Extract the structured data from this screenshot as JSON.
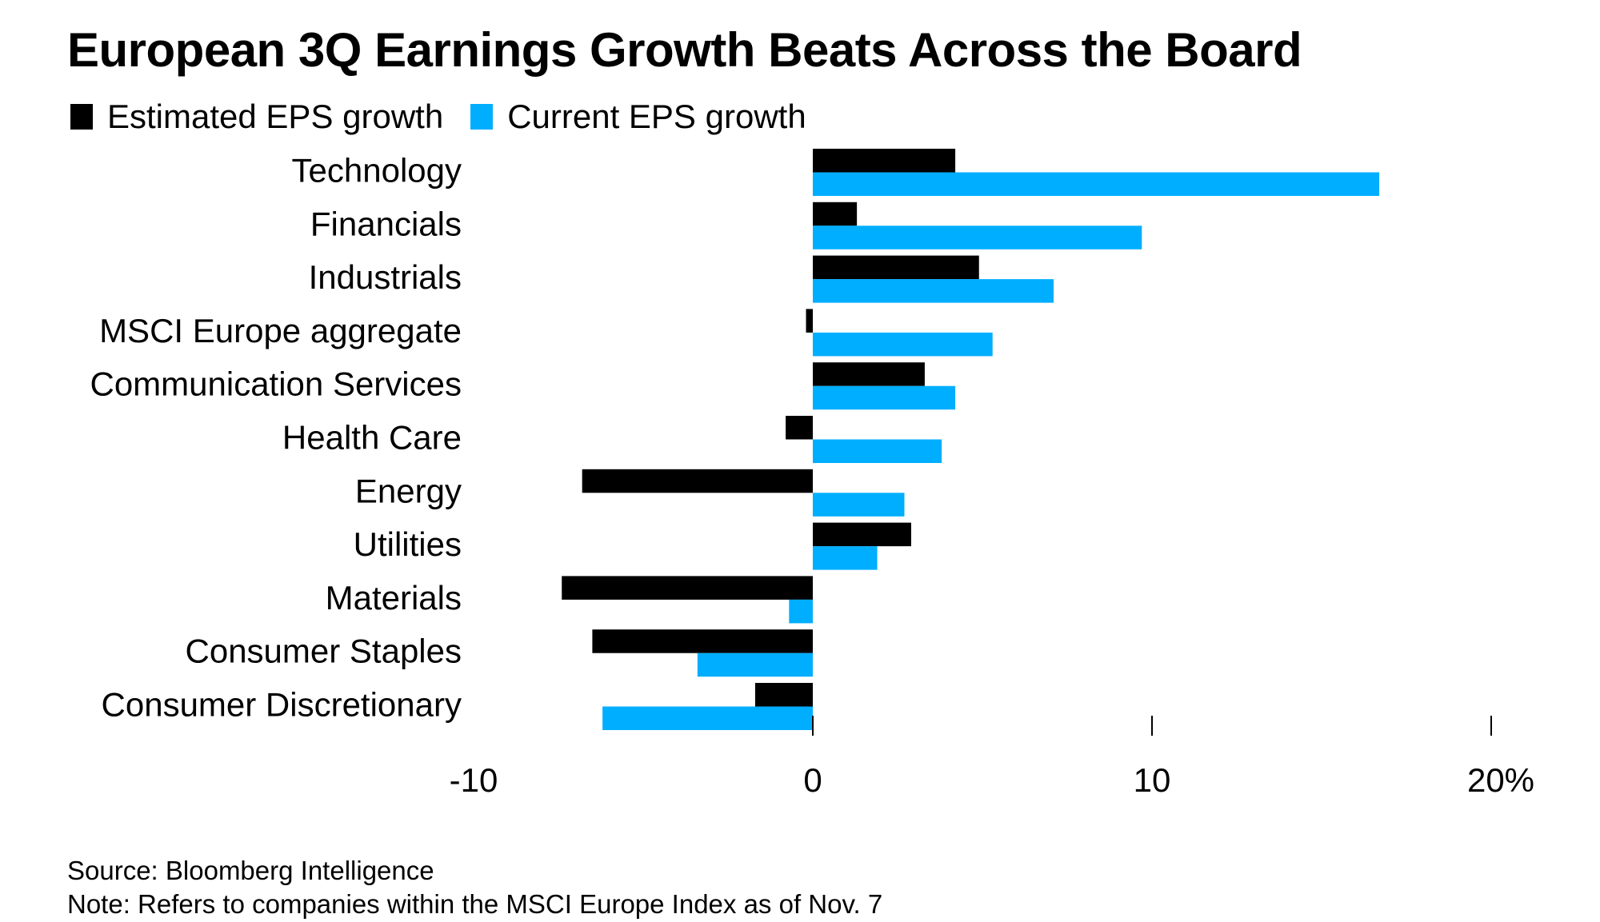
{
  "chart_data": {
    "type": "bar",
    "orientation": "horizontal",
    "title": "European 3Q Earnings Growth Beats Across the Board",
    "xlabel": "",
    "ylabel": "",
    "categories": [
      "Technology",
      "Financials",
      "Industrials",
      "MSCI Europe aggregate",
      "Communication Services",
      "Health Care",
      "Energy",
      "Utilities",
      "Materials",
      "Consumer Staples",
      "Consumer Discretionary"
    ],
    "series": [
      {
        "name": "Estimated EPS growth",
        "color": "#000000",
        "values": [
          4.2,
          1.3,
          4.9,
          -0.2,
          3.3,
          -0.8,
          -6.8,
          2.9,
          -7.4,
          -6.5,
          -1.7
        ]
      },
      {
        "name": "Current EPS growth",
        "color": "#00aeff",
        "values": [
          16.7,
          9.7,
          7.1,
          5.3,
          4.2,
          3.8,
          2.7,
          1.9,
          -0.7,
          -3.4,
          -6.2
        ]
      }
    ],
    "xlim": [
      -10,
      20
    ],
    "xticks": [
      -10,
      0,
      10,
      20
    ],
    "xtick_labels": [
      "-10",
      "0",
      "10",
      "20%"
    ],
    "grid": false,
    "legend_position": "top-left"
  },
  "footer": {
    "source": "Source: Bloomberg Intelligence",
    "note": "Note: Refers to companies within the MSCI Europe Index as of Nov. 7"
  }
}
